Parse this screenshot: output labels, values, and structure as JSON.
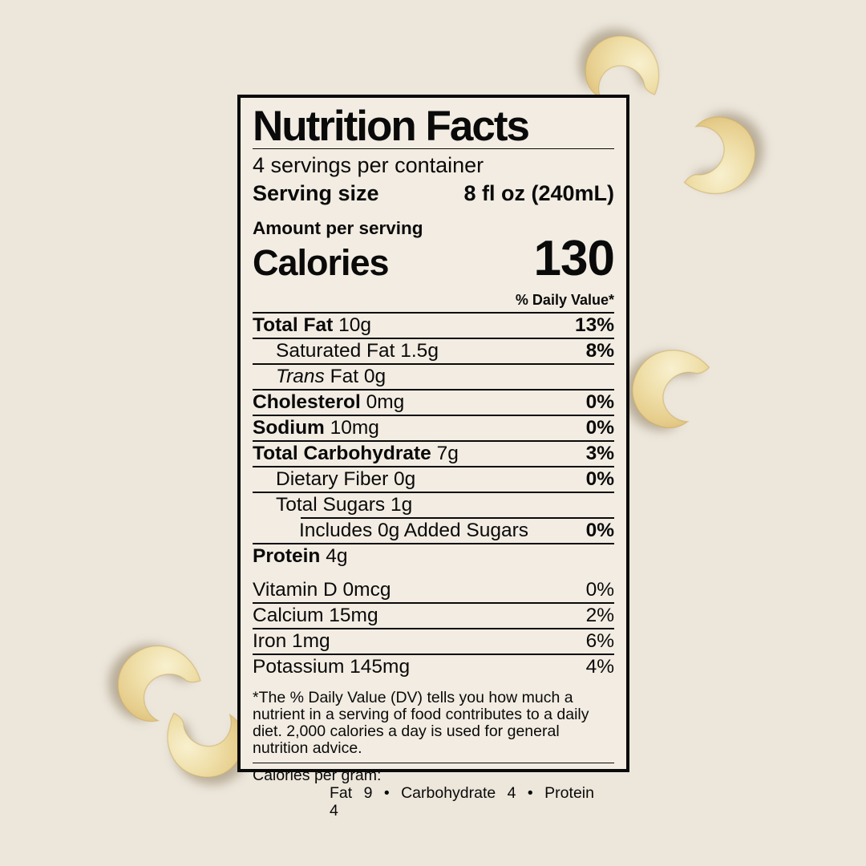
{
  "label": {
    "title": "Nutrition Facts",
    "servings_per_container": "4 servings per container",
    "serving_size_label": "Serving size",
    "serving_size_value": "8 fl oz (240mL)",
    "amount_per_serving": "Amount per serving",
    "calories_label": "Calories",
    "calories_value": "130",
    "daily_value_header": "% Daily Value*",
    "nutrient_rows": [
      {
        "name": "Total Fat",
        "amount": "10g",
        "dv": "13%",
        "bold": true,
        "indent": 0,
        "sep": "full"
      },
      {
        "name": "Saturated Fat",
        "amount": "1.5g",
        "dv": "8%",
        "bold": false,
        "indent": 1,
        "sep": "full"
      },
      {
        "name_italic": "Trans",
        "name": "Fat",
        "amount": "0g",
        "dv": "",
        "bold": false,
        "indent": 1,
        "sep": "full"
      },
      {
        "name": "Cholesterol",
        "amount": "0mg",
        "dv": "0%",
        "bold": true,
        "indent": 0,
        "sep": "full"
      },
      {
        "name": "Sodium",
        "amount": "10mg",
        "dv": "0%",
        "bold": true,
        "indent": 0,
        "sep": "full"
      },
      {
        "name": "Total Carbohydrate",
        "amount": "7g",
        "dv": "3%",
        "bold": true,
        "indent": 0,
        "sep": "full"
      },
      {
        "name": "Dietary Fiber",
        "amount": "0g",
        "dv": "0%",
        "bold": false,
        "indent": 1,
        "sep": "full"
      },
      {
        "name": "Total Sugars",
        "amount": "1g",
        "dv": "",
        "bold": false,
        "indent": 1,
        "sep": "indent"
      },
      {
        "name": "Includes 0g Added Sugars",
        "amount": "",
        "dv": "0%",
        "bold": false,
        "indent": 2,
        "sep": "full"
      },
      {
        "name": "Protein",
        "amount": "4g",
        "dv": "",
        "bold": true,
        "indent": 0,
        "sep": "none"
      }
    ],
    "vitamin_rows": [
      {
        "name": "Vitamin D",
        "amount": "0mcg",
        "dv": "0%",
        "sep": "full"
      },
      {
        "name": "Calcium",
        "amount": "15mg",
        "dv": "2%",
        "sep": "full"
      },
      {
        "name": "Iron",
        "amount": "1mg",
        "dv": "6%",
        "sep": "full"
      },
      {
        "name": "Potassium",
        "amount": "145mg",
        "dv": "4%",
        "sep": "none"
      }
    ],
    "footnote": "*The % Daily Value (DV) tells you how much a nutrient in a serving of food contributes to a daily diet. 2,000 calories a day is used for general nutrition advice.",
    "calories_per_gram_label": "Calories per gram:",
    "calories_per_gram_values": "Fat 9  •  Carbohydrate 4  •  Protein 4"
  },
  "colors": {
    "page_bg": "#ece6db",
    "label_bg": "#f2ece2",
    "ink": "#0a0a0a",
    "cashew_light": "#f8f0cf",
    "cashew_mid": "#efdfa9",
    "cashew_dark": "#dcbd77"
  }
}
